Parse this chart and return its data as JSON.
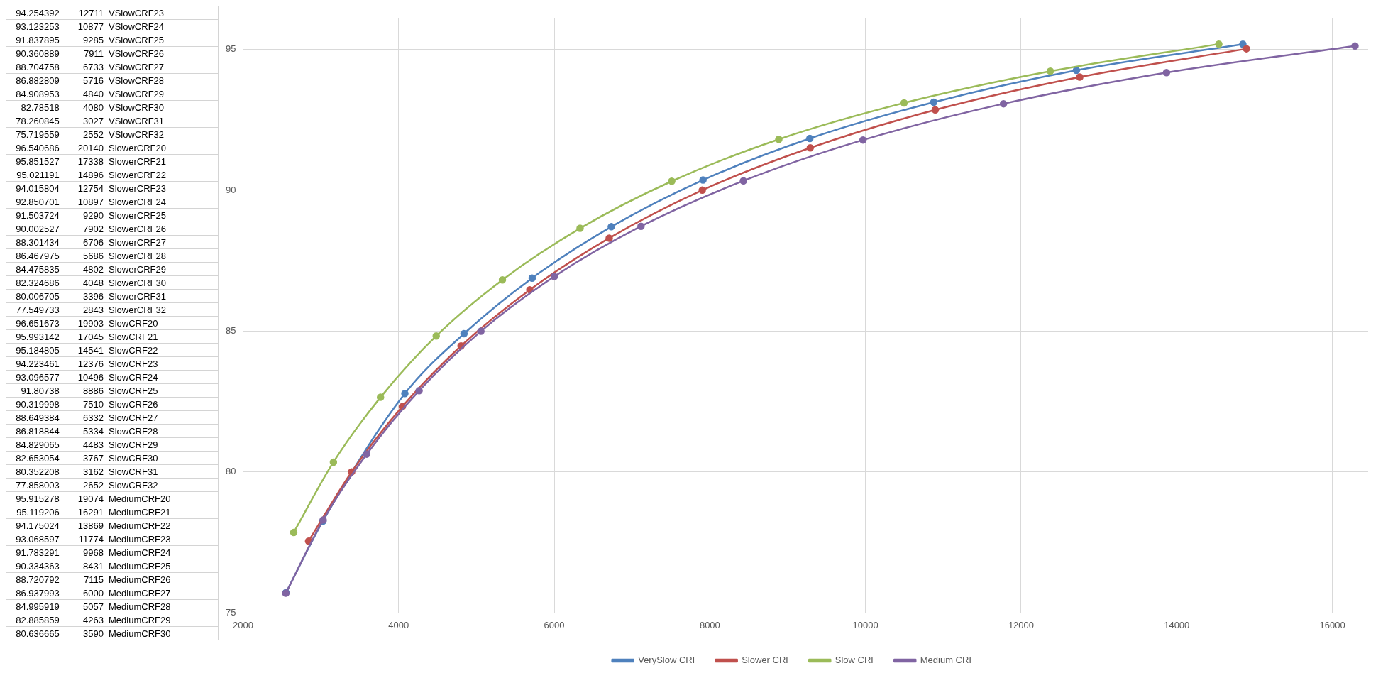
{
  "chart_data": [
    {
      "type": "other",
      "annotations": [
        "94.254392 12711 VSlowCRF23",
        "93.123253 10877 VSlowCRF24",
        "91.837895 9285 VSlowCRF25",
        "90.360889 7911 VSlowCRF26",
        "88.704758 6733 VSlowCRF27",
        "86.882809 5716 VSlowCRF28",
        "84.908953 4840 VSlowCRF29",
        "82.78518 4080 VSlowCRF30",
        "78.260845 3027 VSlowCRF31",
        "75.719559 2552 VSlowCRF32",
        "96.540686 20140 SlowerCRF20",
        "95.851527 17338 SlowerCRF21",
        "95.021191 14896 SlowerCRF22",
        "94.015804 12754 SlowerCRF23",
        "92.850701 10897 SlowerCRF24",
        "91.503724 9290 SlowerCRF25",
        "90.002527 7902 SlowerCRF26",
        "88.301434 6706 SlowerCRF27",
        "86.467975 5686 SlowerCRF28",
        "84.475835 4802 SlowerCRF29",
        "82.324686 4048 SlowerCRF30",
        "80.006705 3396 SlowerCRF31",
        "77.549733 2843 SlowerCRF32",
        "96.651673 19903 SlowCRF20",
        "95.993142 17045 SlowCRF21",
        "95.184805 14541 SlowCRF22",
        "94.223461 12376 SlowCRF23",
        "93.096577 10496 SlowCRF24",
        "91.80738 8886 SlowCRF25",
        "90.319998 7510 SlowCRF26",
        "88.649384 6332 SlowCRF27",
        "86.818844 5334 SlowCRF28",
        "84.829065 4483 SlowCRF29",
        "82.653054 3767 SlowCRF30",
        "80.352208 3162 SlowCRF31",
        "77.858003 2652 SlowCRF32",
        "95.915278 19074 MediumCRF20",
        "95.119206 16291 MediumCRF21",
        "94.175024 13869 MediumCRF22",
        "93.068597 11774 MediumCRF23",
        "91.783291 9968 MediumCRF24",
        "90.334363 8431 MediumCRF25",
        "88.720792 7115 MediumCRF26",
        "86.937993 6000 MediumCRF27",
        "84.995919 5057 MediumCRF28",
        "82.885859 4263 MediumCRF29",
        "80.636665 3590 MediumCRF30"
      ]
    },
    {
      "type": "line",
      "xlim": [
        2000,
        16460
      ],
      "ylim": [
        75,
        96.1
      ],
      "xticks": [
        2000,
        4000,
        6000,
        8000,
        10000,
        12000,
        14000,
        16000
      ],
      "yticks": [
        75,
        80,
        85,
        90,
        95
      ],
      "grid": true,
      "legend": "bottom",
      "marker": "circle",
      "line_style": "solid",
      "series": [
        {
          "name": "VerySlow CRF",
          "color": "#4f81bd",
          "x": [
            14850,
            12711,
            10877,
            9285,
            7911,
            6733,
            5716,
            4840,
            4080,
            3027,
            2552
          ],
          "values": [
            95.18,
            94.254392,
            93.123253,
            91.837895,
            90.360889,
            88.704758,
            86.882809,
            84.908953,
            82.78518,
            78.260845,
            75.719559
          ]
        },
        {
          "name": "Slower CRF",
          "color": "#c0504d",
          "x": [
            14896,
            12754,
            10897,
            9290,
            7902,
            6706,
            5686,
            4802,
            4048,
            3396,
            2843
          ],
          "values": [
            95.021191,
            94.015804,
            92.850701,
            91.503724,
            90.002527,
            88.301434,
            86.467975,
            84.475835,
            82.324686,
            80.006705,
            77.549733
          ]
        },
        {
          "name": "Slow CRF",
          "color": "#9bbb59",
          "x": [
            14541,
            12376,
            10496,
            8886,
            7510,
            6332,
            5334,
            4483,
            3767,
            3162,
            2652
          ],
          "values": [
            95.184805,
            94.223461,
            93.096577,
            91.80738,
            90.319998,
            88.649384,
            86.818844,
            84.829065,
            82.653054,
            80.352208,
            77.858003
          ]
        },
        {
          "name": "Medium CRF",
          "color": "#8064a2",
          "x": [
            16291,
            13869,
            11774,
            9968,
            8431,
            7115,
            6000,
            5057,
            4263,
            3590,
            3030,
            2550
          ],
          "values": [
            95.119206,
            94.175024,
            93.068597,
            91.783291,
            90.334363,
            88.720792,
            86.937993,
            84.995919,
            82.885859,
            80.636665,
            78.3,
            75.7
          ]
        }
      ]
    }
  ]
}
